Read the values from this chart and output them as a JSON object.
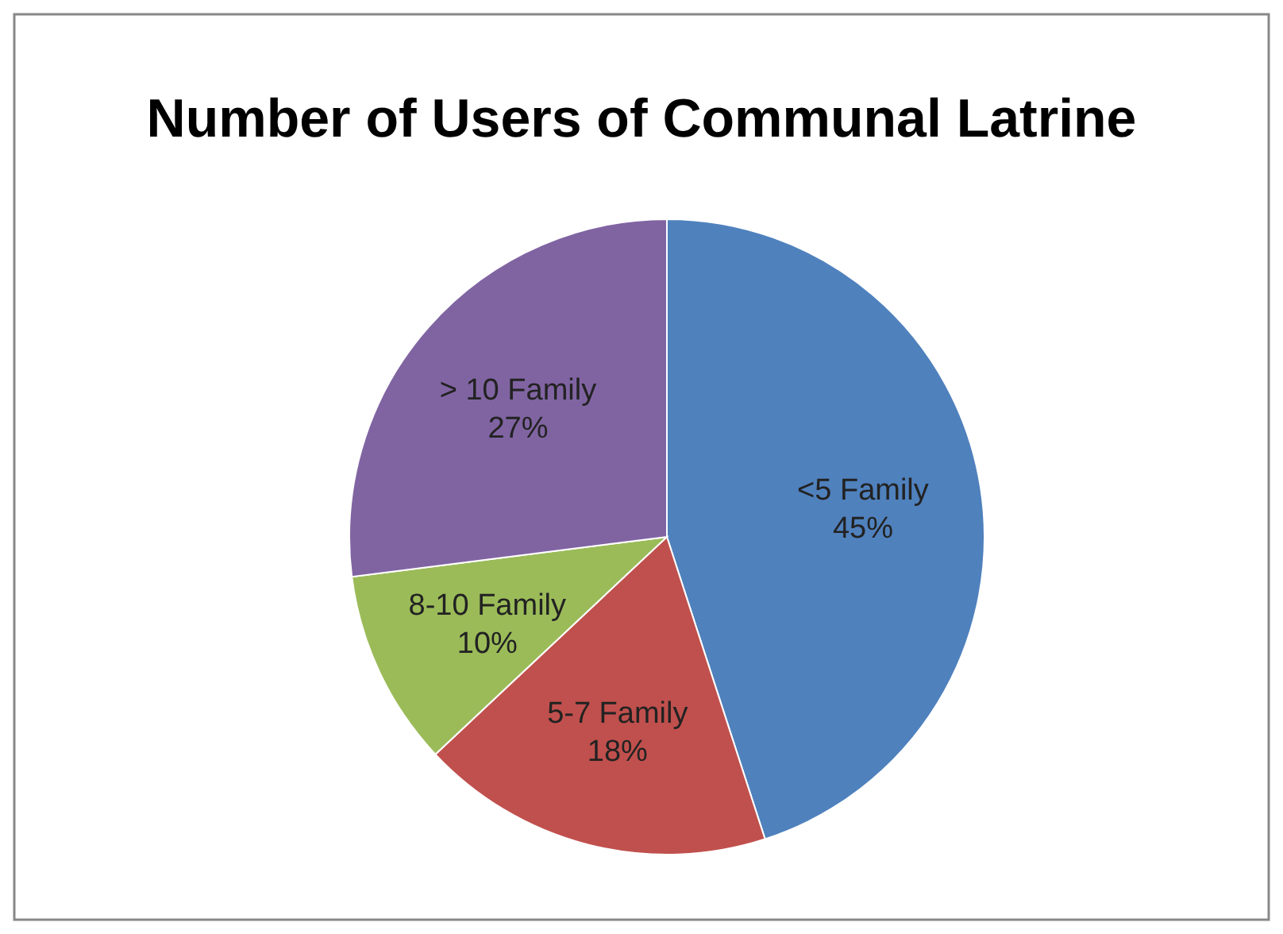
{
  "chart_data": {
    "type": "pie",
    "title": "Number of Users of Communal Latrine",
    "categories": [
      "<5 Family",
      "5-7 Family",
      "8-10 Family",
      "> 10 Family"
    ],
    "values": [
      45,
      18,
      10,
      27
    ],
    "value_labels": [
      "45%",
      "18%",
      "10%",
      "27%"
    ],
    "colors": [
      "#4f81bd",
      "#c0504d",
      "#9bbb59",
      "#8064a2"
    ]
  }
}
